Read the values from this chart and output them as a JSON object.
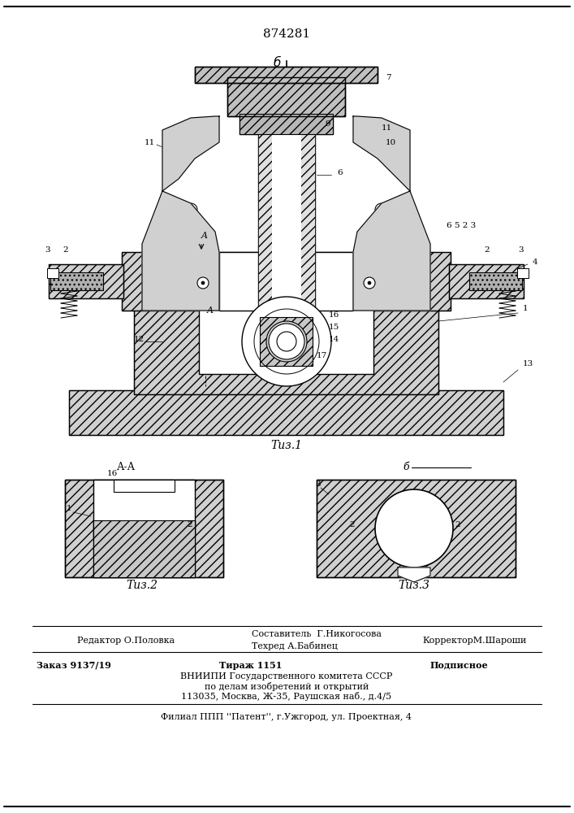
{
  "patent_number": "874281",
  "fig1_caption": "Τиз.1",
  "fig2_caption": "Τиз.2",
  "fig3_caption": "Τиз.3",
  "section_label": "А-А",
  "bg_color": "#ffffff",
  "drawing_color": "#000000",
  "hatch_color": "#000000",
  "editor_line": "Редактор О.Половка",
  "compiler_line": "Составитель  Г.Никогосова",
  "techred_line": "Техред А.Бабинец",
  "corrector_line": "КорректорМ.Шароши",
  "order_line": "Заказ 9137/19",
  "tirazh_line": "Тираж 1151",
  "podpisnoe_line": "Подписное",
  "vniip_line": "ВНИИПИ Государственного комитета СССР",
  "po_delam_line": "по делам изобретений и открытий",
  "address_line": "113035, Москва, Ж-35, Раушская наб., д.4/5",
  "filial_line": "Филиал ППП ''Патент'', г.Ужгород, ул. Проектная, 4"
}
